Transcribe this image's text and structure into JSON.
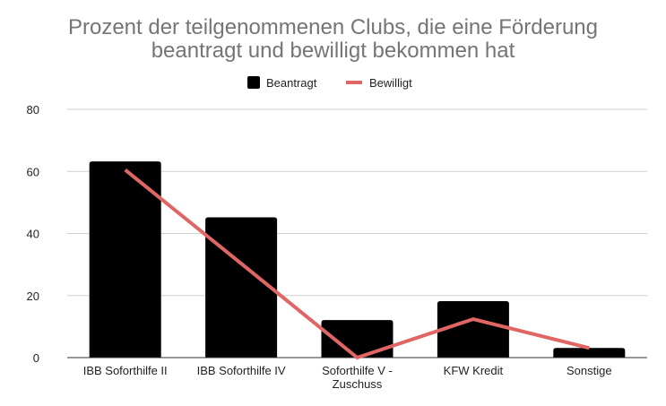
{
  "chart_data": {
    "type": "bar",
    "title_lines": [
      "Prozent der teilgenommenen Clubs, die eine Förderung",
      "beantragt und bewilligt bekommen hat"
    ],
    "categories": [
      "IBB Soforthilfe II",
      "IBB Soforthilfe IV",
      "Soforthilfe V - Zuschuss",
      "KFW Kredit",
      "Sonstige"
    ],
    "category_label_lines": [
      [
        "IBB Soforthilfe II"
      ],
      [
        "IBB Soforthilfe IV"
      ],
      [
        "Soforthilfe V -",
        "Zuschuss"
      ],
      [
        "KFW Kredit"
      ],
      [
        "Sonstige"
      ]
    ],
    "series": [
      {
        "name": "Beantragt",
        "type": "bar",
        "color": "#000000",
        "values": [
          63.2,
          45.2,
          12.1,
          18.2,
          3.1
        ]
      },
      {
        "name": "Bewilligt",
        "type": "line",
        "color": "#e06666",
        "values": [
          60.5,
          30.3,
          0,
          12.4,
          3.1
        ]
      }
    ],
    "ylim": [
      0,
      80
    ],
    "yticks": [
      0,
      20,
      40,
      60,
      80
    ],
    "grid": true,
    "legend_position": "top-center",
    "xlabel": "",
    "ylabel": ""
  }
}
